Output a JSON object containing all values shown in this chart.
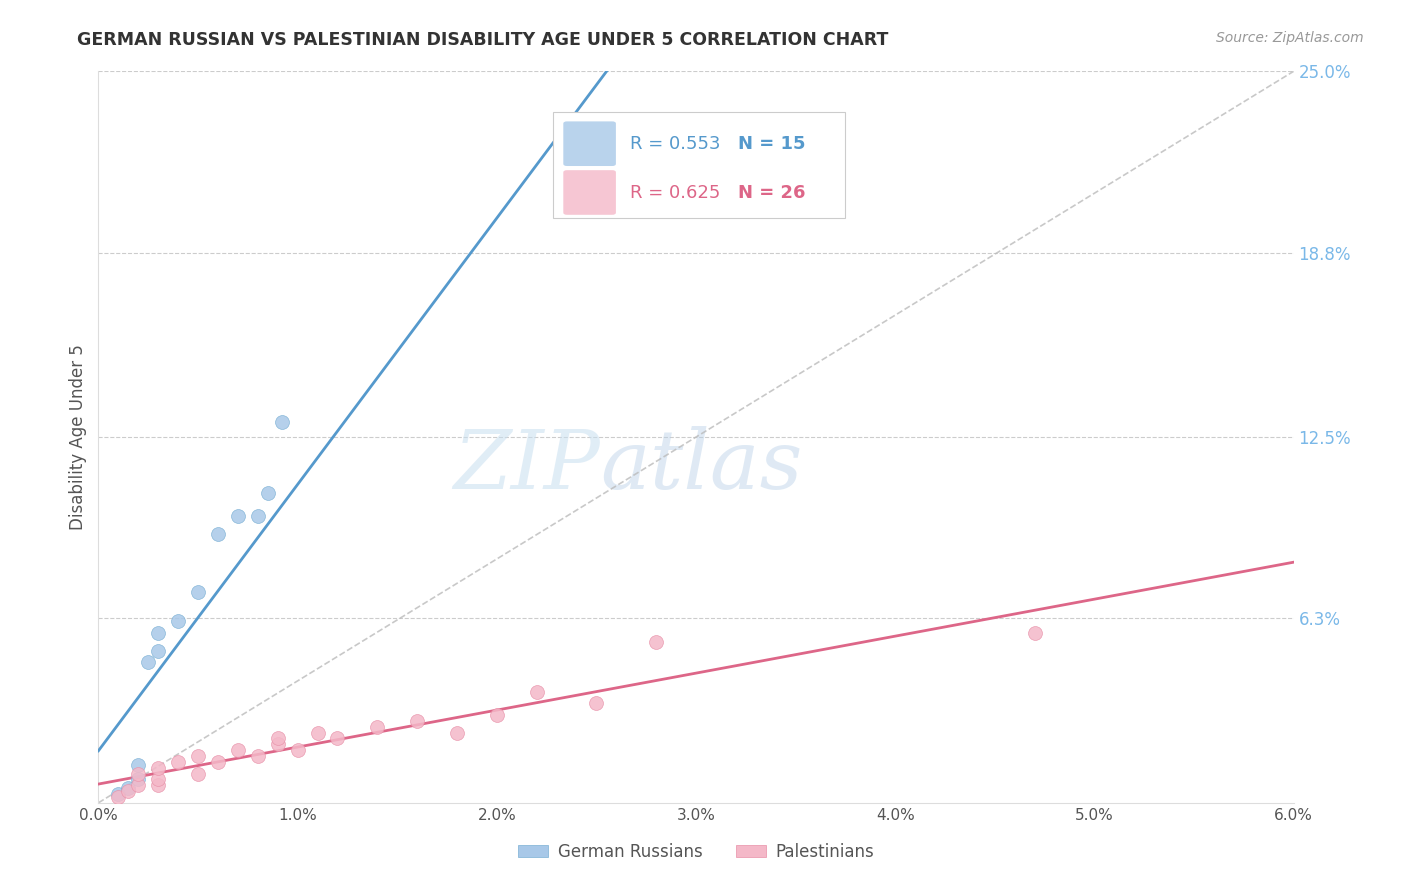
{
  "title": "GERMAN RUSSIAN VS PALESTINIAN DISABILITY AGE UNDER 5 CORRELATION CHART",
  "source": "Source: ZipAtlas.com",
  "xlabel": "",
  "ylabel": "Disability Age Under 5",
  "xlim": [
    0.0,
    0.06
  ],
  "ylim": [
    0.0,
    0.25
  ],
  "xtick_labels": [
    "0.0%",
    "1.0%",
    "2.0%",
    "3.0%",
    "4.0%",
    "5.0%",
    "6.0%"
  ],
  "xtick_values": [
    0.0,
    0.01,
    0.02,
    0.03,
    0.04,
    0.05,
    0.06
  ],
  "ytick_right_labels": [
    "6.3%",
    "12.5%",
    "18.8%",
    "25.0%"
  ],
  "ytick_right_values": [
    0.063,
    0.125,
    0.188,
    0.25
  ],
  "blue_color": "#a8c8e8",
  "blue_edge_color": "#7ab0d4",
  "pink_color": "#f4b8c8",
  "pink_edge_color": "#e890a8",
  "blue_line_color": "#5599cc",
  "pink_line_color": "#dd6688",
  "ref_line_color": "#bbbbbb",
  "german_russian_x": [
    0.001,
    0.0015,
    0.002,
    0.002,
    0.0025,
    0.003,
    0.003,
    0.004,
    0.005,
    0.006,
    0.007,
    0.008,
    0.0085,
    0.0092,
    0.025
  ],
  "german_russian_y": [
    0.003,
    0.005,
    0.008,
    0.013,
    0.048,
    0.052,
    0.058,
    0.062,
    0.072,
    0.092,
    0.098,
    0.098,
    0.106,
    0.13,
    0.22
  ],
  "palestinian_x": [
    0.001,
    0.0015,
    0.002,
    0.002,
    0.003,
    0.003,
    0.003,
    0.004,
    0.005,
    0.005,
    0.006,
    0.007,
    0.008,
    0.009,
    0.009,
    0.01,
    0.011,
    0.012,
    0.014,
    0.016,
    0.018,
    0.02,
    0.022,
    0.025,
    0.028,
    0.047
  ],
  "palestinian_y": [
    0.002,
    0.004,
    0.006,
    0.01,
    0.006,
    0.008,
    0.012,
    0.014,
    0.01,
    0.016,
    0.014,
    0.018,
    0.016,
    0.02,
    0.022,
    0.018,
    0.024,
    0.022,
    0.026,
    0.028,
    0.024,
    0.03,
    0.038,
    0.034,
    0.055,
    0.058
  ],
  "watermark_zip": "ZIP",
  "watermark_atlas": "atlas",
  "background_color": "#ffffff",
  "grid_color": "#cccccc",
  "title_color": "#333333",
  "source_color": "#999999",
  "axis_color": "#555555",
  "right_tick_color": "#7ab8e8",
  "legend_border_color": "#cccccc",
  "bottom_legend_color": "#555555"
}
